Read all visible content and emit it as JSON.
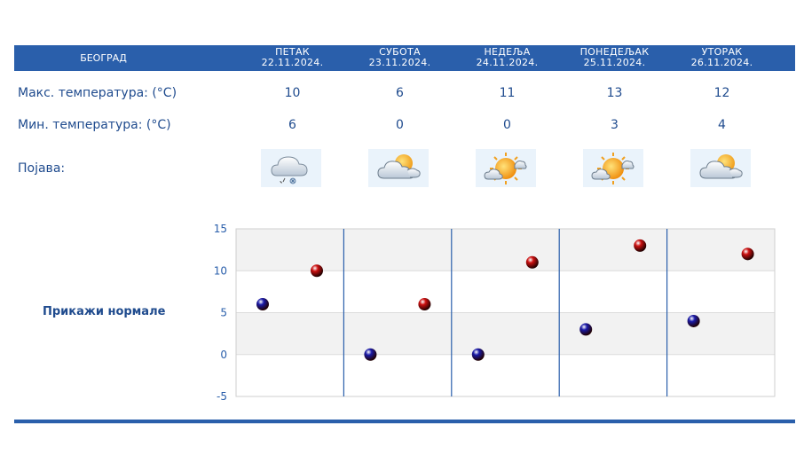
{
  "table": {
    "city": "БЕОГРАД",
    "days": [
      {
        "name": "ПЕТАК",
        "date": "22.11.2024.",
        "max": "10",
        "min": "6",
        "icon": "cloud-snow-icon"
      },
      {
        "name": "СУБОТА",
        "date": "23.11.2024.",
        "max": "6",
        "min": "0",
        "icon": "partly-cloudy-icon"
      },
      {
        "name": "НЕДЕЉА",
        "date": "24.11.2024.",
        "max": "11",
        "min": "0",
        "icon": "sun-cloud-icon"
      },
      {
        "name": "ПОНЕДЕЉАК",
        "date": "25.11.2024.",
        "max": "13",
        "min": "3",
        "icon": "sun-cloud-icon"
      },
      {
        "name": "УТОРАК",
        "date": "26.11.2024.",
        "max": "12",
        "min": "4",
        "icon": "partly-cloudy-icon"
      }
    ],
    "labels": {
      "max": "Макс. температура: (°C)",
      "min": "Мин. температура: (°C)",
      "phenomenon": "Појава:"
    }
  },
  "normals_link": "Прикажи нормале",
  "chart_data": {
    "type": "scatter",
    "categories": [
      "22.11.2024.",
      "23.11.2024.",
      "24.11.2024.",
      "25.11.2024.",
      "26.11.2024."
    ],
    "series": [
      {
        "values": [
          6,
          0,
          0,
          3,
          4
        ],
        "color": "#1a1aa8"
      },
      {
        "values": [
          10,
          6,
          11,
          13,
          12
        ],
        "color": "#cc1010"
      }
    ],
    "ylim": [
      -5,
      15
    ],
    "yticks": [
      "15",
      "10",
      "5",
      "0",
      "-5"
    ],
    "grid": true
  },
  "colors": {
    "header": "#2a5fab",
    "text": "#1f4b8e",
    "band": "#f2f2f2"
  }
}
